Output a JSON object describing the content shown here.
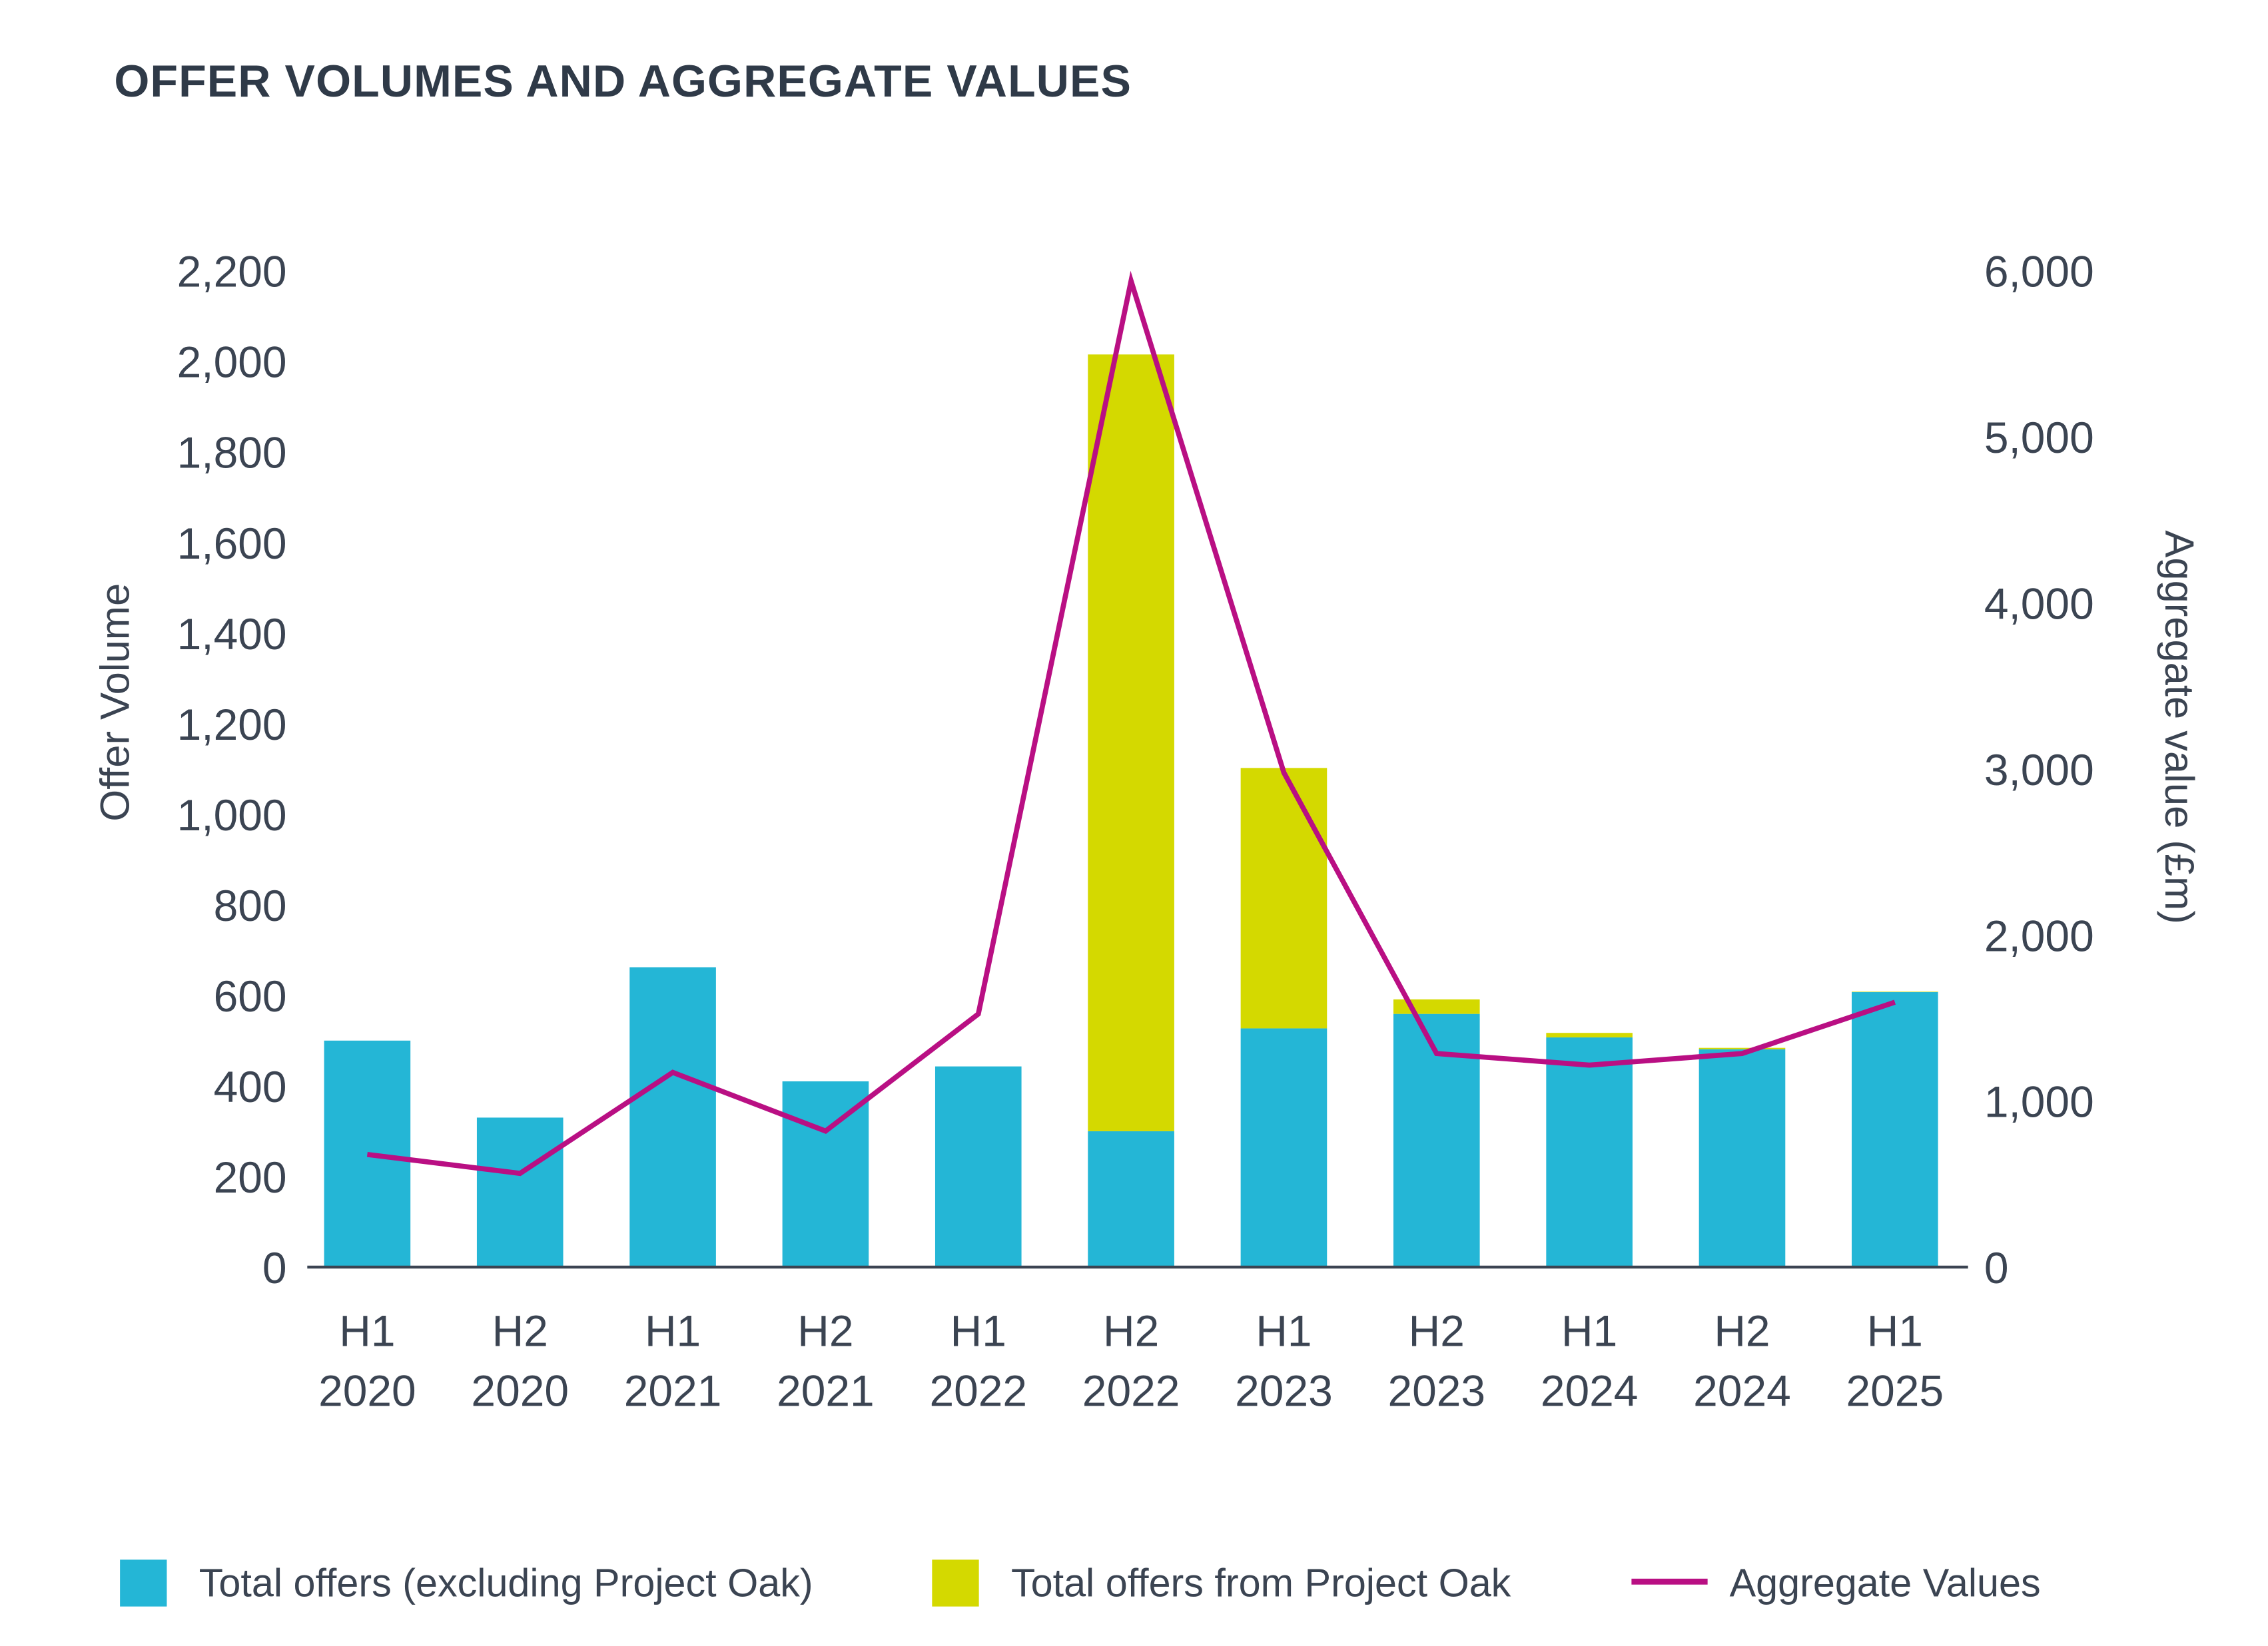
{
  "chart_data": {
    "type": "bar",
    "stacked": true,
    "title": "OFFER VOLUMES AND AGGREGATE VALUES",
    "categories": [
      [
        "H1",
        "2020"
      ],
      [
        "H2",
        "2020"
      ],
      [
        "H1",
        "2021"
      ],
      [
        "H2",
        "2021"
      ],
      [
        "H1",
        "2022"
      ],
      [
        "H2",
        "2022"
      ],
      [
        "H1",
        "2023"
      ],
      [
        "H2",
        "2023"
      ],
      [
        "H1",
        "2024"
      ],
      [
        "H2",
        "2024"
      ],
      [
        "H1",
        "2025"
      ]
    ],
    "ylabel": "Offer Volume",
    "y2label": "Aggregate value (£m)",
    "ylim": [
      0,
      2200
    ],
    "y2lim": [
      0,
      6000
    ],
    "yticks": [
      "0",
      "200",
      "400",
      "600",
      "800",
      "1,000",
      "1,200",
      "1,400",
      "1,600",
      "1,800",
      "2,000",
      "2,200"
    ],
    "y2ticks": [
      "0",
      "1,000",
      "2,000",
      "3,000",
      "4,000",
      "5,000",
      "6,000"
    ],
    "grid": false,
    "legend_position": "bottom",
    "series": [
      {
        "name": "Total offers (excluding Project Oak)",
        "type": "bar",
        "axis": "left",
        "color": "#24b6d6",
        "values": [
          500,
          330,
          662,
          410,
          443,
          300,
          527,
          559,
          507,
          481,
          607
        ]
      },
      {
        "name": "Total offers from Project Oak",
        "type": "bar",
        "axis": "left",
        "color": "#d4d900",
        "values": [
          0,
          0,
          0,
          0,
          0,
          1715,
          575,
          32,
          10,
          3,
          1
        ]
      },
      {
        "name": "Aggregate Values",
        "type": "line",
        "axis": "right",
        "color": "#b90f83",
        "values": [
          678,
          564,
          1172,
          819,
          1524,
          5938,
          2978,
          1286,
          1216,
          1286,
          1595
        ]
      }
    ]
  }
}
